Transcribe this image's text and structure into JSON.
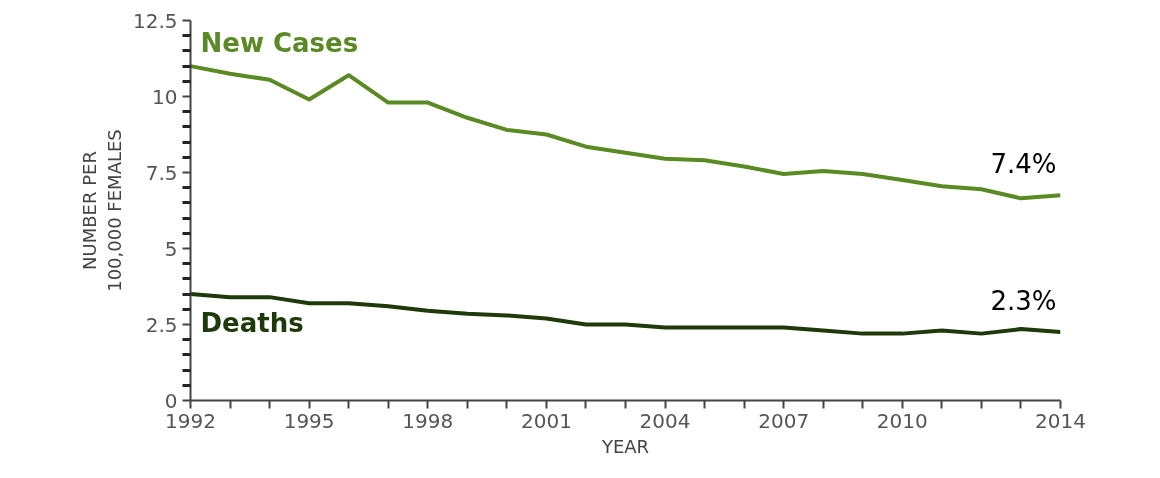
{
  "chart_data": {
    "type": "line",
    "xlabel": "YEAR",
    "ylabel": "NUMBER PER\n100,000 FEMALES",
    "x": [
      1992,
      1993,
      1994,
      1995,
      1996,
      1997,
      1998,
      1999,
      2000,
      2001,
      2002,
      2003,
      2004,
      2005,
      2006,
      2007,
      2008,
      2009,
      2010,
      2011,
      2012,
      2013,
      2014
    ],
    "series": [
      {
        "name": "New Cases",
        "color": "#5a8a23",
        "values": [
          11.0,
          10.75,
          10.55,
          9.9,
          10.7,
          9.8,
          9.8,
          9.3,
          8.9,
          8.75,
          8.35,
          8.15,
          7.95,
          7.9,
          7.7,
          7.45,
          7.55,
          7.45,
          7.25,
          7.05,
          6.95,
          6.65,
          6.75
        ]
      },
      {
        "name": "Deaths",
        "color": "#1f3a0a",
        "values": [
          3.5,
          3.4,
          3.4,
          3.2,
          3.2,
          3.1,
          2.95,
          2.85,
          2.8,
          2.7,
          2.5,
          2.5,
          2.4,
          2.4,
          2.4,
          2.4,
          2.3,
          2.2,
          2.2,
          2.3,
          2.2,
          2.35,
          2.25
        ]
      }
    ],
    "annotations": [
      {
        "text": "7.4%",
        "x": 2014,
        "y": 6.75
      },
      {
        "text": "2.3%",
        "x": 2014,
        "y": 2.25
      }
    ],
    "xlim": [
      1992,
      2014
    ],
    "xticks": [
      1992,
      {
        "value": 1993,
        "label": null
      },
      {
        "value": 1994,
        "label": null
      },
      1995,
      {
        "value": 1996,
        "label": null
      },
      {
        "value": 1997,
        "label": null
      },
      1998,
      {
        "value": 1999,
        "label": null
      },
      {
        "value": 2000,
        "label": null
      },
      2001,
      {
        "value": 2002,
        "label": null
      },
      {
        "value": 2003,
        "label": null
      },
      2004,
      {
        "value": 2005,
        "label": null
      },
      {
        "value": 2006,
        "label": null
      },
      2007,
      {
        "value": 2008,
        "label": null
      },
      {
        "value": 2009,
        "label": null
      },
      2010,
      {
        "value": 2011,
        "label": null
      },
      {
        "value": 2012,
        "label": null
      },
      {
        "value": 2013,
        "label": null
      },
      2014
    ],
    "ylim": [
      0,
      12.5
    ],
    "yticks": [
      0,
      2.5,
      5,
      7.5,
      10,
      12.5
    ],
    "grid": false,
    "marker": "none",
    "line_style": "solid"
  }
}
